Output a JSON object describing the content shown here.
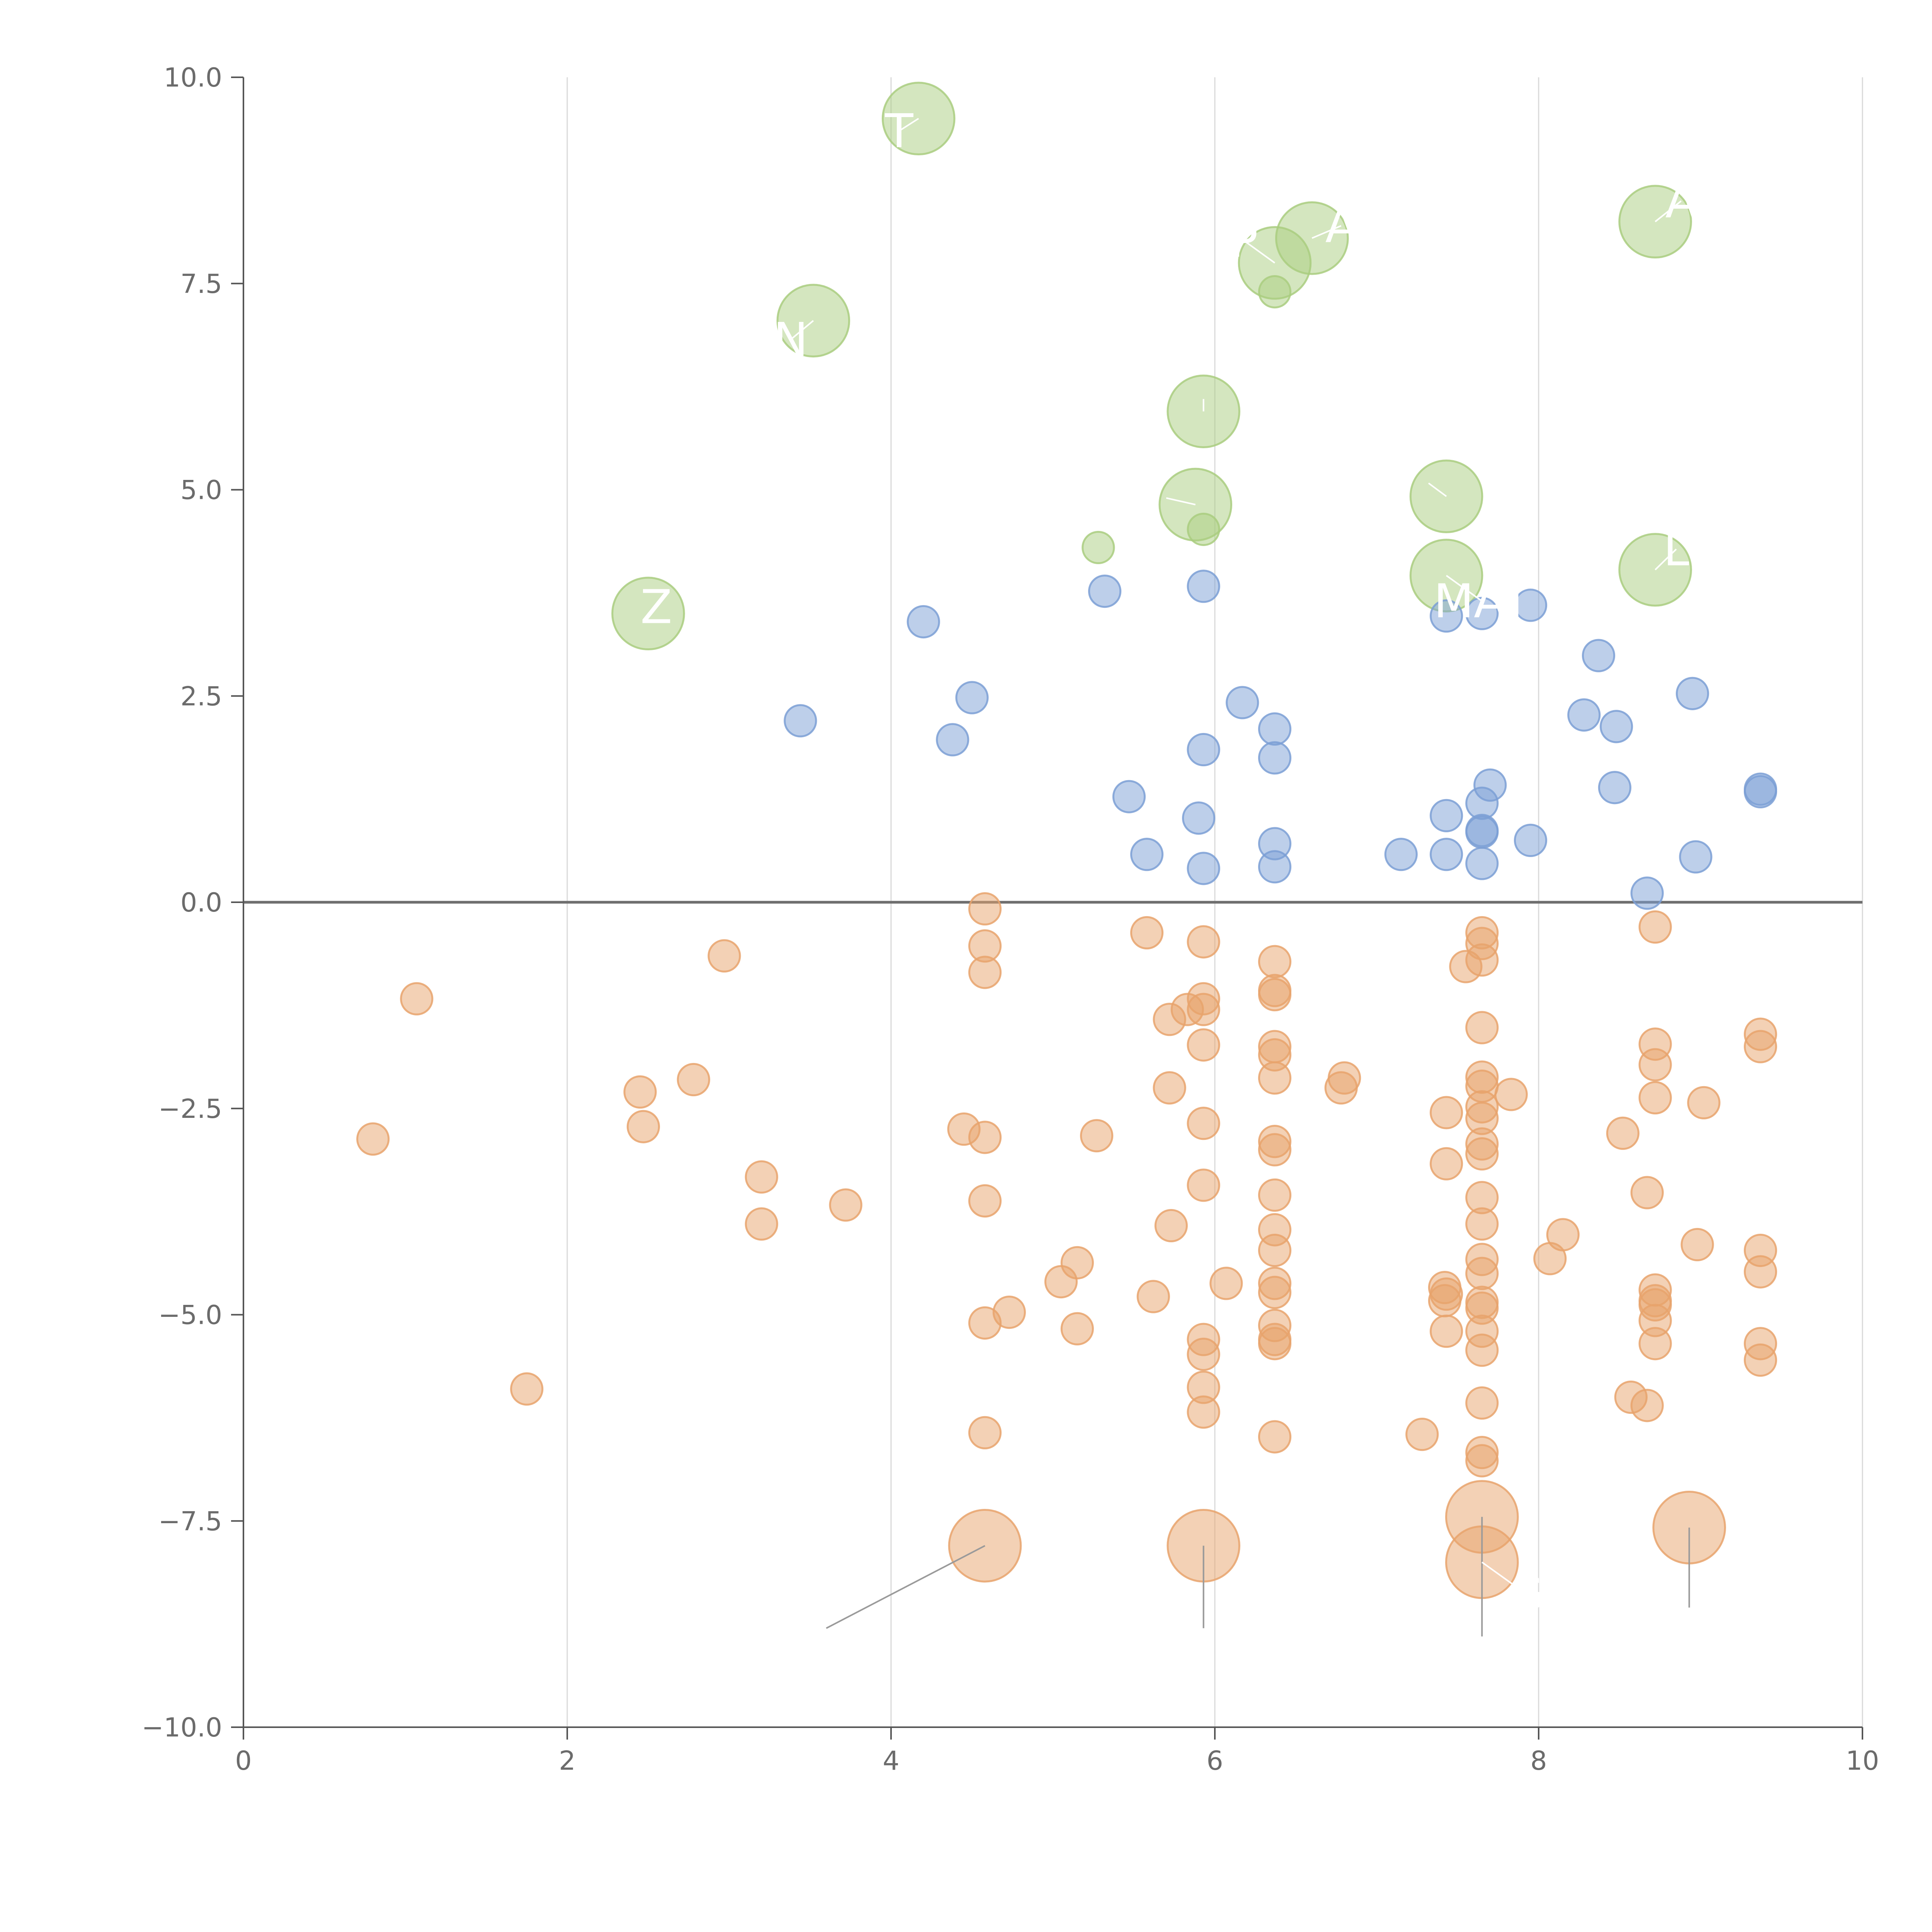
{
  "chart_data": {
    "type": "scatter",
    "title": "",
    "xlabel": "",
    "ylabel": "",
    "xlim": [
      0,
      10
    ],
    "ylim": [
      -10,
      10
    ],
    "grid": "vertical",
    "x_ticks": [
      "0",
      "2",
      "4",
      "6",
      "8",
      "10"
    ],
    "y_ticks": [
      "10.0",
      "7.5",
      "5.0",
      "2.5",
      "0.0",
      "−2.5",
      "−5.0",
      "−7.5",
      "−10.0"
    ],
    "colors": {
      "green": "#a9cd7f",
      "blue": "#7b9fd5",
      "orange": "#e8a36c",
      "axis": "#555555",
      "grid": "#d9d9d9"
    },
    "labels": {
      "l1": "T",
      "l2": "N",
      "l3": "Z",
      "l4": "P",
      "l5": "A",
      "l6": "A",
      "l7": "L",
      "l8": "MAT",
      "l9": "G"
    },
    "series": [
      {
        "name": "green",
        "color": "#a9cd7f",
        "points": [
          [
            4.17,
            9.5,
            64
          ],
          [
            3.52,
            7.05,
            64
          ],
          [
            2.5,
            3.5,
            64
          ],
          [
            6.37,
            7.75,
            64
          ],
          [
            6.6,
            8.05,
            64
          ],
          [
            8.72,
            8.25,
            64
          ],
          [
            5.93,
            5.95,
            64
          ],
          [
            5.88,
            4.82,
            64
          ],
          [
            7.43,
            4.92,
            64
          ],
          [
            7.43,
            3.96,
            64
          ],
          [
            8.72,
            4.03,
            64
          ],
          [
            5.28,
            4.3,
            28
          ],
          [
            5.93,
            4.52,
            28
          ],
          [
            6.37,
            7.4,
            28
          ]
        ]
      },
      {
        "name": "blue",
        "color": "#7b9fd5",
        "points": [
          [
            3.44,
            2.2,
            28
          ],
          [
            4.2,
            3.4,
            28
          ],
          [
            4.5,
            2.48,
            28
          ],
          [
            4.38,
            1.97,
            28
          ],
          [
            5.32,
            3.77,
            28
          ],
          [
            5.93,
            3.83,
            28
          ],
          [
            5.47,
            1.28,
            28
          ],
          [
            5.58,
            0.58,
            28
          ],
          [
            5.9,
            1.02,
            28
          ],
          [
            5.93,
            1.85,
            28
          ],
          [
            5.93,
            0.41,
            28
          ],
          [
            6.17,
            2.42,
            28
          ],
          [
            6.37,
            2.1,
            28
          ],
          [
            6.37,
            1.75,
            28
          ],
          [
            6.37,
            0.71,
            28
          ],
          [
            6.37,
            0.43,
            28
          ],
          [
            7.15,
            0.58,
            28
          ],
          [
            7.43,
            3.47,
            28
          ],
          [
            7.43,
            1.05,
            28
          ],
          [
            7.43,
            0.58,
            28
          ],
          [
            7.65,
            3.5,
            28
          ],
          [
            7.65,
            1.2,
            28
          ],
          [
            7.65,
            0.87,
            28
          ],
          [
            7.65,
            0.85,
            28
          ],
          [
            7.65,
            0.47,
            28
          ],
          [
            7.7,
            1.42,
            28
          ],
          [
            7.95,
            3.6,
            28
          ],
          [
            7.95,
            0.75,
            28
          ],
          [
            8.37,
            2.99,
            28
          ],
          [
            8.28,
            2.27,
            28
          ],
          [
            8.48,
            2.13,
            28
          ],
          [
            8.47,
            1.39,
            28
          ],
          [
            8.67,
            0.11,
            28
          ],
          [
            8.95,
            2.53,
            28
          ],
          [
            8.97,
            0.55,
            28
          ],
          [
            9.37,
            1.37,
            28
          ],
          [
            9.37,
            1.34,
            28
          ]
        ]
      },
      {
        "name": "orange",
        "color": "#e8a36c",
        "points": [
          [
            0.8,
            -2.87,
            28
          ],
          [
            1.07,
            -1.17,
            28
          ],
          [
            1.75,
            -5.9,
            28
          ],
          [
            2.45,
            -2.3,
            28
          ],
          [
            2.47,
            -2.72,
            28
          ],
          [
            2.78,
            -2.15,
            28
          ],
          [
            2.97,
            -0.65,
            28
          ],
          [
            3.2,
            -3.33,
            28
          ],
          [
            3.2,
            -3.9,
            28
          ],
          [
            3.72,
            -3.67,
            28
          ],
          [
            4.45,
            -2.75,
            28
          ],
          [
            4.58,
            -0.08,
            28
          ],
          [
            4.58,
            -0.53,
            28
          ],
          [
            4.58,
            -0.85,
            28
          ],
          [
            4.58,
            -2.85,
            28
          ],
          [
            4.58,
            -3.62,
            28
          ],
          [
            4.58,
            -5.1,
            28
          ],
          [
            4.58,
            -6.43,
            28
          ],
          [
            4.73,
            -4.97,
            28
          ],
          [
            5.05,
            -4.6,
            28
          ],
          [
            5.15,
            -4.37,
            28
          ],
          [
            5.15,
            -5.17,
            28
          ],
          [
            5.27,
            -2.83,
            28
          ],
          [
            5.58,
            -0.37,
            28
          ],
          [
            5.62,
            -4.78,
            28
          ],
          [
            5.72,
            -1.42,
            28
          ],
          [
            5.72,
            -2.25,
            28
          ],
          [
            5.73,
            -3.92,
            28
          ],
          [
            5.83,
            -1.3,
            28
          ],
          [
            5.93,
            -0.48,
            28
          ],
          [
            5.93,
            -1.17,
            28
          ],
          [
            5.93,
            -1.3,
            28
          ],
          [
            5.93,
            -1.73,
            28
          ],
          [
            5.93,
            -2.68,
            28
          ],
          [
            5.93,
            -3.43,
            28
          ],
          [
            5.93,
            -5.3,
            28
          ],
          [
            5.93,
            -5.48,
            28
          ],
          [
            5.93,
            -5.88,
            28
          ],
          [
            5.93,
            -6.18,
            28
          ],
          [
            6.07,
            -4.62,
            28
          ],
          [
            6.37,
            -0.72,
            28
          ],
          [
            6.37,
            -1.07,
            28
          ],
          [
            6.37,
            -1.12,
            28
          ],
          [
            6.37,
            -1.75,
            28
          ],
          [
            6.37,
            -1.85,
            28
          ],
          [
            6.37,
            -2.13,
            28
          ],
          [
            6.37,
            -2.9,
            28
          ],
          [
            6.37,
            -3.0,
            28
          ],
          [
            6.37,
            -3.55,
            28
          ],
          [
            6.37,
            -3.97,
            28
          ],
          [
            6.37,
            -4.22,
            28
          ],
          [
            6.37,
            -4.62,
            28
          ],
          [
            6.37,
            -4.73,
            28
          ],
          [
            6.37,
            -5.13,
            28
          ],
          [
            6.37,
            -5.3,
            28
          ],
          [
            6.37,
            -5.35,
            28
          ],
          [
            6.37,
            -6.48,
            28
          ],
          [
            6.8,
            -2.13,
            28
          ],
          [
            6.78,
            -2.25,
            28
          ],
          [
            7.28,
            -6.45,
            28
          ],
          [
            7.43,
            -2.55,
            28
          ],
          [
            7.43,
            -3.17,
            28
          ],
          [
            7.42,
            -4.67,
            28
          ],
          [
            7.43,
            -4.75,
            28
          ],
          [
            7.42,
            -4.83,
            28
          ],
          [
            7.43,
            -5.2,
            28
          ],
          [
            7.55,
            -0.78,
            28
          ],
          [
            7.65,
            -0.37,
            28
          ],
          [
            7.65,
            -0.5,
            28
          ],
          [
            7.65,
            -0.7,
            28
          ],
          [
            7.65,
            -1.52,
            28
          ],
          [
            7.65,
            -2.12,
            28
          ],
          [
            7.65,
            -2.23,
            28
          ],
          [
            7.65,
            -2.48,
            28
          ],
          [
            7.65,
            -2.62,
            28
          ],
          [
            7.65,
            -2.93,
            28
          ],
          [
            7.65,
            -3.05,
            28
          ],
          [
            7.65,
            -3.58,
            28
          ],
          [
            7.65,
            -3.9,
            28
          ],
          [
            7.65,
            -4.33,
            28
          ],
          [
            7.65,
            -4.5,
            28
          ],
          [
            7.65,
            -4.85,
            28
          ],
          [
            7.65,
            -4.92,
            28
          ],
          [
            7.65,
            -5.2,
            28
          ],
          [
            7.65,
            -5.43,
            28
          ],
          [
            7.65,
            -6.07,
            28
          ],
          [
            7.65,
            -6.67,
            28
          ],
          [
            7.65,
            -6.77,
            28
          ],
          [
            7.83,
            -2.33,
            28
          ],
          [
            8.07,
            -4.32,
            28
          ],
          [
            8.15,
            -4.03,
            28
          ],
          [
            8.52,
            -2.8,
            28
          ],
          [
            8.57,
            -6.0,
            28
          ],
          [
            8.67,
            -3.52,
            28
          ],
          [
            8.67,
            -6.1,
            28
          ],
          [
            8.72,
            -0.3,
            28
          ],
          [
            8.72,
            -1.72,
            28
          ],
          [
            8.72,
            -1.97,
            28
          ],
          [
            8.72,
            -2.37,
            28
          ],
          [
            8.72,
            -4.7,
            28
          ],
          [
            8.72,
            -4.83,
            28
          ],
          [
            8.72,
            -4.88,
            28
          ],
          [
            8.72,
            -5.07,
            28
          ],
          [
            8.72,
            -5.35,
            28
          ],
          [
            9.02,
            -2.43,
            28
          ],
          [
            8.98,
            -4.15,
            28
          ],
          [
            9.37,
            -1.6,
            28
          ],
          [
            9.37,
            -1.75,
            28
          ],
          [
            9.37,
            -4.22,
            28
          ],
          [
            9.37,
            -4.48,
            28
          ],
          [
            9.37,
            -5.35,
            28
          ],
          [
            9.37,
            -5.55,
            28
          ],
          [
            4.58,
            -7.8,
            64
          ],
          [
            5.93,
            -7.8,
            64
          ],
          [
            7.65,
            -7.45,
            64
          ],
          [
            7.65,
            -8.0,
            64
          ],
          [
            8.93,
            -7.58,
            64
          ]
        ]
      }
    ],
    "annotations": [
      {
        "label": "l1",
        "x": 4.17,
        "y": 9.5,
        "tx": 4.05,
        "ty": 9.35
      },
      {
        "label": "l2",
        "x": 3.52,
        "y": 7.05,
        "tx": 3.38,
        "ty": 6.82
      },
      {
        "label": "l3",
        "x": 2.5,
        "y": 3.5,
        "tx": 2.55,
        "ty": 3.58
      },
      {
        "label": "l4",
        "x": 6.37,
        "y": 7.75,
        "tx": 6.18,
        "ty": 8.02
      },
      {
        "label": "l5",
        "x": 6.6,
        "y": 8.05,
        "tx": 6.78,
        "ty": 8.2
      },
      {
        "label": "l6",
        "x": 8.72,
        "y": 8.25,
        "tx": 8.88,
        "ty": 8.5
      },
      {
        "label": "l7",
        "x": 8.72,
        "y": 4.03,
        "tx": 8.85,
        "ty": 4.28
      },
      {
        "label": "l8",
        "x": 7.43,
        "y": 3.96,
        "tx": 7.65,
        "ty": 3.65
      },
      {
        "label": "l9",
        "x": 7.65,
        "y": -8.0,
        "tx": 7.92,
        "ty": -8.38
      }
    ],
    "leaders": [
      {
        "x": 4.58,
        "y": -7.8,
        "tx": 3.6,
        "ty": -8.8
      },
      {
        "x": 5.93,
        "y": -7.8,
        "tx": 5.93,
        "ty": -8.8
      },
      {
        "x": 7.65,
        "y": -7.45,
        "tx": 7.65,
        "ty": -8.9
      },
      {
        "x": 8.93,
        "y": -7.58,
        "tx": 8.93,
        "ty": -8.55
      },
      {
        "x": 5.93,
        "y": 5.95,
        "tx": 5.93,
        "ty": 6.1
      },
      {
        "x": 5.88,
        "y": 4.82,
        "tx": 5.7,
        "ty": 4.9
      },
      {
        "x": 7.43,
        "y": 4.92,
        "tx": 7.32,
        "ty": 5.08
      }
    ]
  }
}
